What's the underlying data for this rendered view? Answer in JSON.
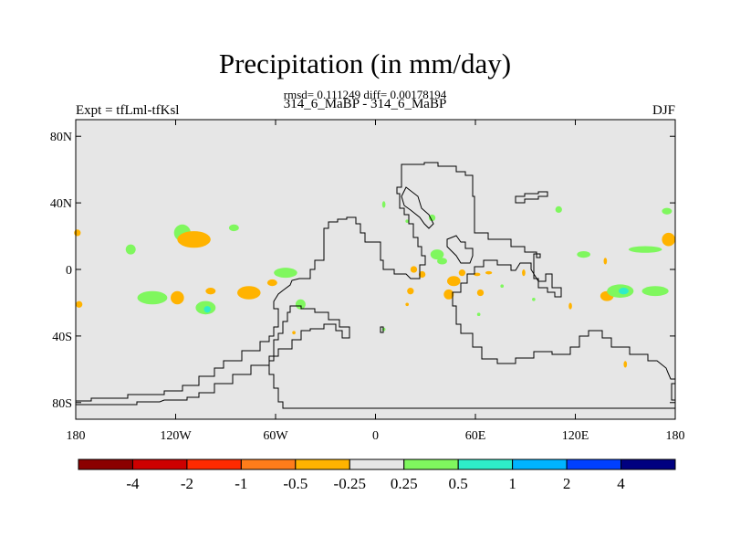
{
  "figure": {
    "title": "Precipitation (in mm/day)",
    "stats": "rmsd= 0.111249 diff= 0.00178194",
    "subtitle": "314_6_MaBP - 314_6_MaBP",
    "left_label": "Expt = tfLml-tfKsl",
    "right_label": "DJF"
  },
  "map": {
    "background_color": "#e6e6e6",
    "lat_ticks": [
      "80N",
      "40N",
      "0",
      "40S",
      "80S"
    ],
    "lat_values": [
      80,
      40,
      0,
      -40,
      -80
    ],
    "lon_ticks": [
      "180",
      "120W",
      "60W",
      "0",
      "60E",
      "120E",
      "180"
    ],
    "lon_values": [
      -180,
      -120,
      -60,
      0,
      60,
      120,
      180
    ]
  },
  "colorbar": {
    "colors": [
      "#8b0000",
      "#cd0000",
      "#ff2a00",
      "#ff7c1a",
      "#ffb300",
      "#e6e6e6",
      "#7ff75e",
      "#2eedc8",
      "#00b4ff",
      "#0040ff",
      "#000080"
    ],
    "labels": [
      "-4",
      "-2",
      "-1",
      "-0.5",
      "-0.25",
      "0.25",
      "0.5",
      "1",
      "2",
      "4"
    ]
  },
  "patches": [
    {
      "lon": -179,
      "lat": 22,
      "rlon": 2,
      "rlat": 2,
      "color": "#ffb300"
    },
    {
      "lon": -178,
      "lat": -21,
      "rlon": 2,
      "rlat": 2,
      "color": "#ffb300"
    },
    {
      "lon": -116,
      "lat": 22,
      "rlon": 5,
      "rlat": 5,
      "color": "#7ff75e"
    },
    {
      "lon": -109,
      "lat": 18,
      "rlon": 10,
      "rlat": 5,
      "color": "#ffb300"
    },
    {
      "lon": -147,
      "lat": 12,
      "rlon": 3,
      "rlat": 3,
      "color": "#7ff75e"
    },
    {
      "lon": -85,
      "lat": 25,
      "rlon": 3,
      "rlat": 2,
      "color": "#7ff75e"
    },
    {
      "lon": -134,
      "lat": -17,
      "rlon": 9,
      "rlat": 4,
      "color": "#7ff75e"
    },
    {
      "lon": -119,
      "lat": -17,
      "rlon": 4,
      "rlat": 4,
      "color": "#ffb300"
    },
    {
      "lon": -102,
      "lat": -23,
      "rlon": 6,
      "rlat": 4,
      "color": "#7ff75e"
    },
    {
      "lon": -101,
      "lat": -24,
      "rlon": 2,
      "rlat": 2,
      "color": "#2eedc8"
    },
    {
      "lon": -99,
      "lat": -13,
      "rlon": 3,
      "rlat": 2,
      "color": "#ffb300"
    },
    {
      "lon": -76,
      "lat": -14,
      "rlon": 7,
      "rlat": 4,
      "color": "#ffb300"
    },
    {
      "lon": -62,
      "lat": -8,
      "rlon": 3,
      "rlat": 2,
      "color": "#ffb300"
    },
    {
      "lon": -54,
      "lat": -2,
      "rlon": 7,
      "rlat": 3,
      "color": "#7ff75e"
    },
    {
      "lon": -45,
      "lat": -21,
      "rlon": 3,
      "rlat": 3,
      "color": "#7ff75e"
    },
    {
      "lon": -49,
      "lat": -38,
      "rlon": 1,
      "rlat": 1,
      "color": "#ffb300"
    },
    {
      "lon": 5,
      "lat": -36,
      "rlon": 1,
      "rlat": 1,
      "color": "#7ff75e"
    },
    {
      "lon": 5,
      "lat": 39,
      "rlon": 1,
      "rlat": 2,
      "color": "#7ff75e"
    },
    {
      "lon": 19,
      "lat": 29,
      "rlon": 1,
      "rlat": 1,
      "color": "#7ff75e"
    },
    {
      "lon": 34,
      "lat": 31,
      "rlon": 2,
      "rlat": 2,
      "color": "#7ff75e"
    },
    {
      "lon": 37,
      "lat": 9,
      "rlon": 4,
      "rlat": 3,
      "color": "#7ff75e"
    },
    {
      "lon": 40,
      "lat": 5,
      "rlon": 3,
      "rlat": 2,
      "color": "#7ff75e"
    },
    {
      "lon": 28,
      "lat": -3,
      "rlon": 2,
      "rlat": 2,
      "color": "#ffb300"
    },
    {
      "lon": 23,
      "lat": 0,
      "rlon": 2,
      "rlat": 2,
      "color": "#ffb300"
    },
    {
      "lon": 21,
      "lat": -13,
      "rlon": 2,
      "rlat": 2,
      "color": "#ffb300"
    },
    {
      "lon": 19,
      "lat": -21,
      "rlon": 1,
      "rlat": 1,
      "color": "#ffb300"
    },
    {
      "lon": 44,
      "lat": -15,
      "rlon": 3,
      "rlat": 3,
      "color": "#ffb300"
    },
    {
      "lon": 47,
      "lat": -7,
      "rlon": 4,
      "rlat": 3,
      "color": "#ffb300"
    },
    {
      "lon": 52,
      "lat": -2,
      "rlon": 2,
      "rlat": 2,
      "color": "#ffb300"
    },
    {
      "lon": 61,
      "lat": -3,
      "rlon": 2,
      "rlat": 1,
      "color": "#ffb300"
    },
    {
      "lon": 63,
      "lat": -14,
      "rlon": 2,
      "rlat": 2,
      "color": "#ffb300"
    },
    {
      "lon": 68,
      "lat": -2,
      "rlon": 2,
      "rlat": 1,
      "color": "#ffb300"
    },
    {
      "lon": 62,
      "lat": -27,
      "rlon": 1,
      "rlat": 1,
      "color": "#7ff75e"
    },
    {
      "lon": 76,
      "lat": -10,
      "rlon": 1,
      "rlat": 1,
      "color": "#7ff75e"
    },
    {
      "lon": 89,
      "lat": -2,
      "rlon": 1,
      "rlat": 2,
      "color": "#ffb300"
    },
    {
      "lon": 95,
      "lat": -18,
      "rlon": 1,
      "rlat": 1,
      "color": "#7ff75e"
    },
    {
      "lon": 117,
      "lat": -22,
      "rlon": 1,
      "rlat": 2,
      "color": "#ffb300"
    },
    {
      "lon": 125,
      "lat": 9,
      "rlon": 4,
      "rlat": 2,
      "color": "#7ff75e"
    },
    {
      "lon": 138,
      "lat": 5,
      "rlon": 1,
      "rlat": 2,
      "color": "#ffb300"
    },
    {
      "lon": 139,
      "lat": -16,
      "rlon": 4,
      "rlat": 3,
      "color": "#ffb300"
    },
    {
      "lon": 147,
      "lat": -13,
      "rlon": 8,
      "rlat": 4,
      "color": "#7ff75e"
    },
    {
      "lon": 149,
      "lat": -13,
      "rlon": 3,
      "rlat": 2,
      "color": "#2eedc8"
    },
    {
      "lon": 168,
      "lat": -13,
      "rlon": 8,
      "rlat": 3,
      "color": "#7ff75e"
    },
    {
      "lon": 162,
      "lat": 12,
      "rlon": 10,
      "rlat": 2,
      "color": "#7ff75e"
    },
    {
      "lon": 176,
      "lat": 18,
      "rlon": 4,
      "rlat": 4,
      "color": "#ffb300"
    },
    {
      "lon": 175,
      "lat": 35,
      "rlon": 3,
      "rlat": 2,
      "color": "#7ff75e"
    },
    {
      "lon": 110,
      "lat": 36,
      "rlon": 2,
      "rlat": 2,
      "color": "#7ff75e"
    },
    {
      "lon": 150,
      "lat": -57,
      "rlon": 1,
      "rlat": 2,
      "color": "#ffb300"
    }
  ]
}
